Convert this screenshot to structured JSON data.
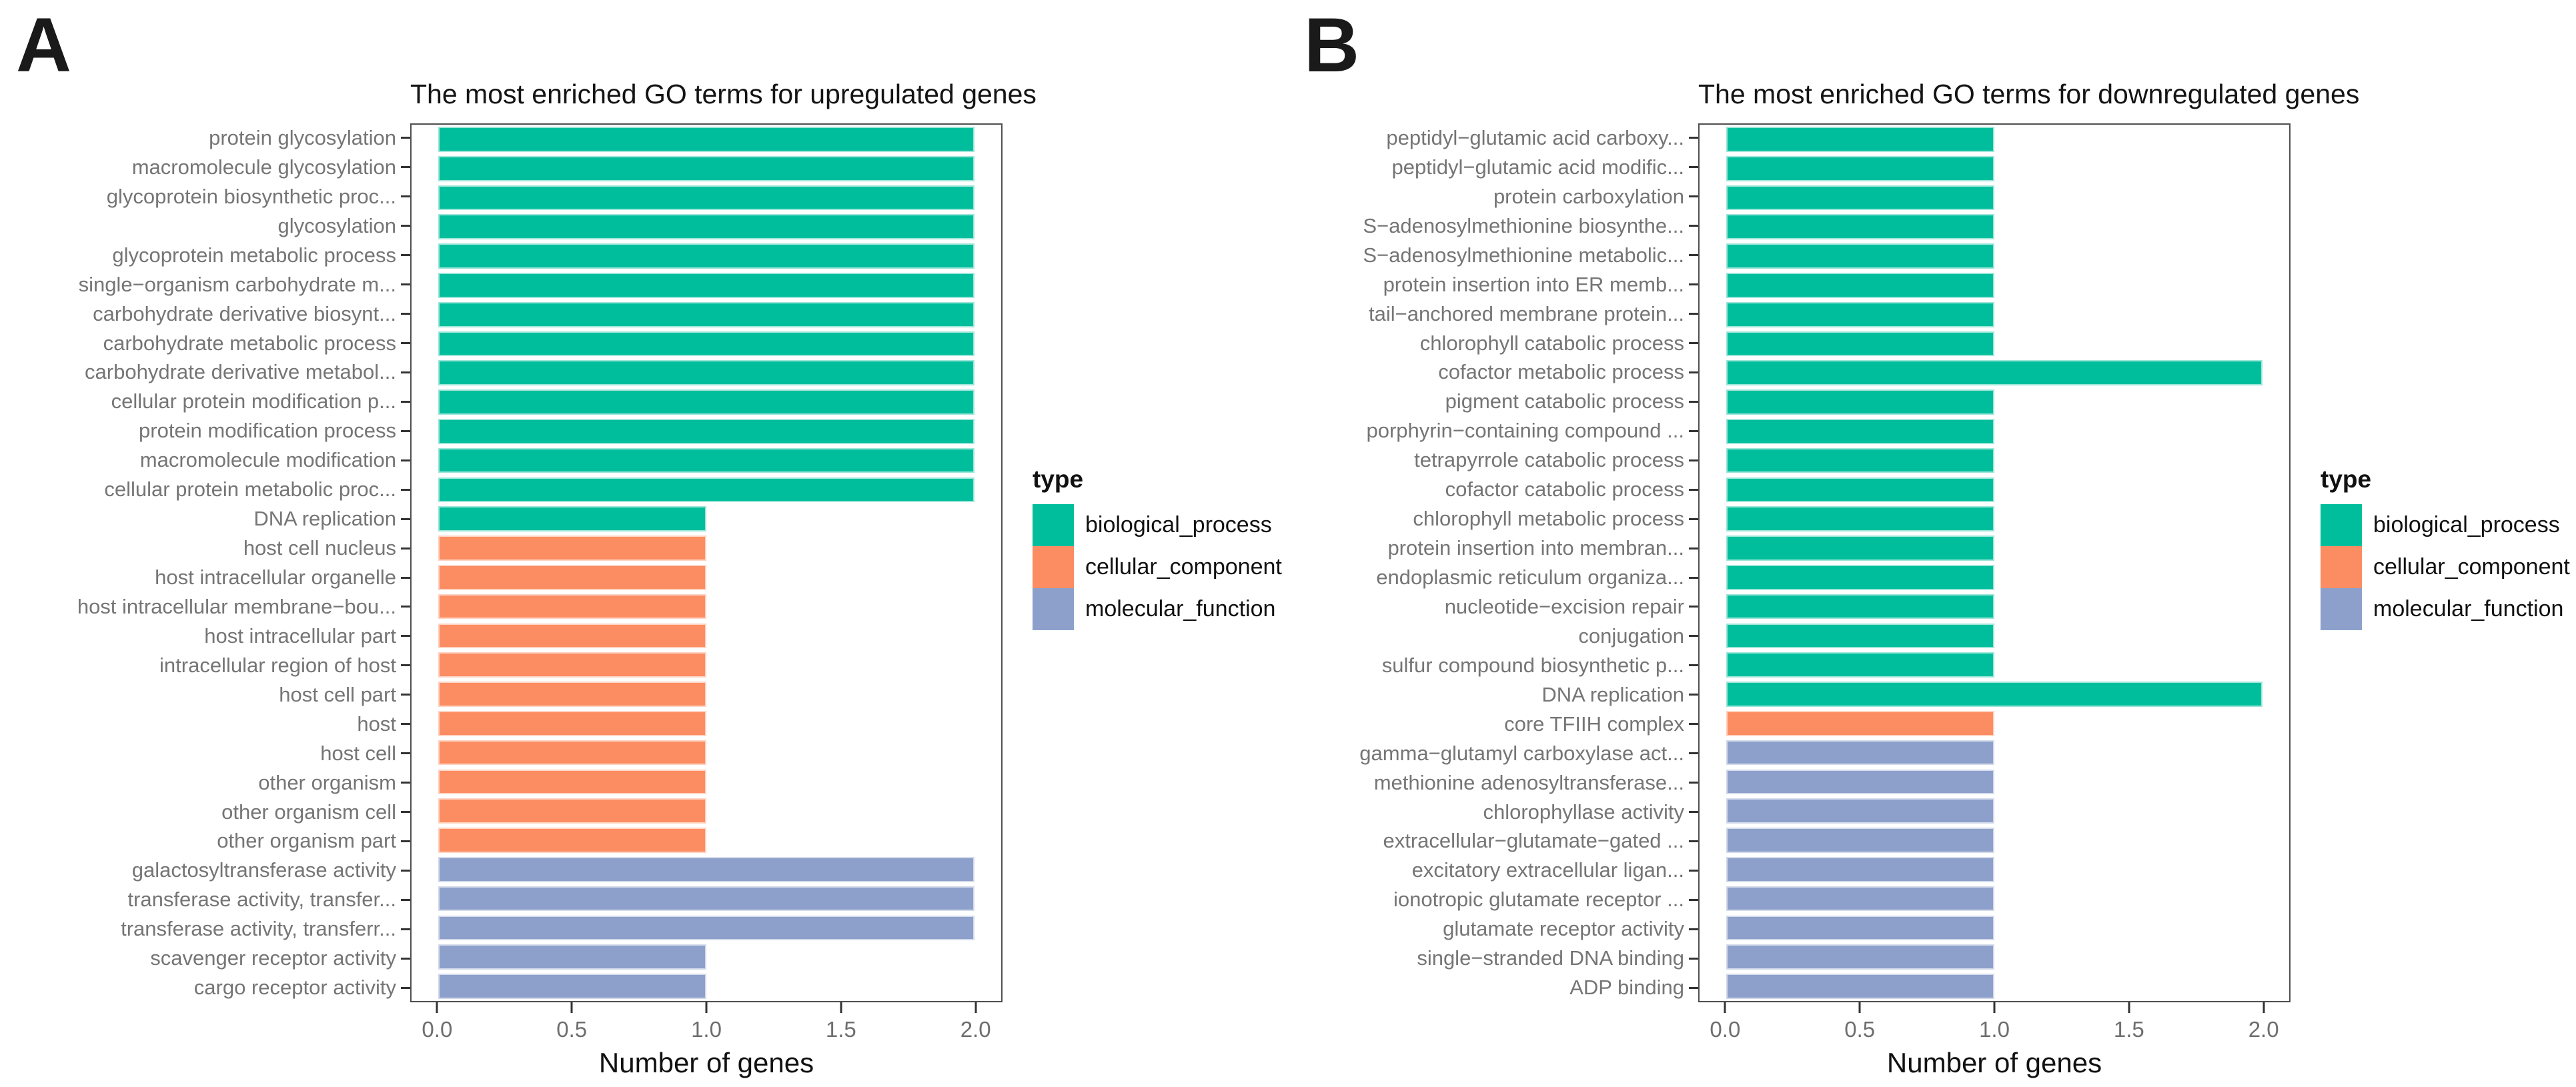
{
  "x_axis": {
    "label": "Number of genes",
    "ticks": [
      "0.0",
      "0.5",
      "1.0",
      "1.5",
      "2.0"
    ],
    "min": 0,
    "max": 2
  },
  "legend": {
    "title": "type",
    "entries": [
      {
        "label": "biological_process",
        "color": "#00be9c"
      },
      {
        "label": "cellular_component",
        "color": "#fc8d62"
      },
      {
        "label": "molecular_function",
        "color": "#8da0cb"
      }
    ]
  },
  "chart_data": [
    {
      "type": "bar",
      "orientation": "horizontal",
      "panel_letter": "A",
      "title": "The most enriched GO terms for upregulated genes",
      "xlabel": "Number of genes",
      "xlim": [
        0,
        2
      ],
      "x_ticks": [
        0,
        0.5,
        1,
        1.5,
        2
      ],
      "grid": false,
      "legend_position": "right",
      "legend_title": "type",
      "bars": [
        {
          "label": "protein glycosylation",
          "type": "biological_process",
          "value": 2
        },
        {
          "label": "macromolecule glycosylation",
          "type": "biological_process",
          "value": 2
        },
        {
          "label": "glycoprotein biosynthetic proc...",
          "type": "biological_process",
          "value": 2
        },
        {
          "label": "glycosylation",
          "type": "biological_process",
          "value": 2
        },
        {
          "label": "glycoprotein metabolic process",
          "type": "biological_process",
          "value": 2
        },
        {
          "label": "single−organism carbohydrate m...",
          "type": "biological_process",
          "value": 2
        },
        {
          "label": "carbohydrate derivative biosynt...",
          "type": "biological_process",
          "value": 2
        },
        {
          "label": "carbohydrate metabolic process",
          "type": "biological_process",
          "value": 2
        },
        {
          "label": "carbohydrate derivative metabol...",
          "type": "biological_process",
          "value": 2
        },
        {
          "label": "cellular protein modification p...",
          "type": "biological_process",
          "value": 2
        },
        {
          "label": "protein modification process",
          "type": "biological_process",
          "value": 2
        },
        {
          "label": "macromolecule modification",
          "type": "biological_process",
          "value": 2
        },
        {
          "label": "cellular protein metabolic proc...",
          "type": "biological_process",
          "value": 2
        },
        {
          "label": "DNA replication",
          "type": "biological_process",
          "value": 1
        },
        {
          "label": "host cell nucleus",
          "type": "cellular_component",
          "value": 1
        },
        {
          "label": "host intracellular organelle",
          "type": "cellular_component",
          "value": 1
        },
        {
          "label": "host intracellular membrane−bou...",
          "type": "cellular_component",
          "value": 1
        },
        {
          "label": "host intracellular part",
          "type": "cellular_component",
          "value": 1
        },
        {
          "label": "intracellular region of host",
          "type": "cellular_component",
          "value": 1
        },
        {
          "label": "host cell part",
          "type": "cellular_component",
          "value": 1
        },
        {
          "label": "host",
          "type": "cellular_component",
          "value": 1
        },
        {
          "label": "host cell",
          "type": "cellular_component",
          "value": 1
        },
        {
          "label": "other organism",
          "type": "cellular_component",
          "value": 1
        },
        {
          "label": "other organism cell",
          "type": "cellular_component",
          "value": 1
        },
        {
          "label": "other organism part",
          "type": "cellular_component",
          "value": 1
        },
        {
          "label": "galactosyltransferase activity",
          "type": "molecular_function",
          "value": 2
        },
        {
          "label": "transferase activity, transfer...",
          "type": "molecular_function",
          "value": 2
        },
        {
          "label": "transferase activity, transferr...",
          "type": "molecular_function",
          "value": 2
        },
        {
          "label": "scavenger receptor activity",
          "type": "molecular_function",
          "value": 1
        },
        {
          "label": "cargo receptor activity",
          "type": "molecular_function",
          "value": 1
        }
      ]
    },
    {
      "type": "bar",
      "orientation": "horizontal",
      "panel_letter": "B",
      "title": "The most enriched GO terms for downregulated genes",
      "xlabel": "Number of genes",
      "xlim": [
        0,
        2
      ],
      "x_ticks": [
        0,
        0.5,
        1,
        1.5,
        2
      ],
      "grid": false,
      "legend_position": "right",
      "legend_title": "type",
      "bars": [
        {
          "label": "peptidyl−glutamic acid carboxy...",
          "type": "biological_process",
          "value": 1
        },
        {
          "label": "peptidyl−glutamic acid modific...",
          "type": "biological_process",
          "value": 1
        },
        {
          "label": "protein carboxylation",
          "type": "biological_process",
          "value": 1
        },
        {
          "label": "S−adenosylmethionine biosynthe...",
          "type": "biological_process",
          "value": 1
        },
        {
          "label": "S−adenosylmethionine metabolic...",
          "type": "biological_process",
          "value": 1
        },
        {
          "label": "protein insertion into ER memb...",
          "type": "biological_process",
          "value": 1
        },
        {
          "label": "tail−anchored membrane protein...",
          "type": "biological_process",
          "value": 1
        },
        {
          "label": "chlorophyll catabolic process",
          "type": "biological_process",
          "value": 1
        },
        {
          "label": "cofactor metabolic process",
          "type": "biological_process",
          "value": 2
        },
        {
          "label": "pigment catabolic process",
          "type": "biological_process",
          "value": 1
        },
        {
          "label": "porphyrin−containing compound ...",
          "type": "biological_process",
          "value": 1
        },
        {
          "label": "tetrapyrrole catabolic process",
          "type": "biological_process",
          "value": 1
        },
        {
          "label": "cofactor catabolic process",
          "type": "biological_process",
          "value": 1
        },
        {
          "label": "chlorophyll metabolic process",
          "type": "biological_process",
          "value": 1
        },
        {
          "label": "protein insertion into membran...",
          "type": "biological_process",
          "value": 1
        },
        {
          "label": "endoplasmic reticulum organiza...",
          "type": "biological_process",
          "value": 1
        },
        {
          "label": "nucleotide−excision repair",
          "type": "biological_process",
          "value": 1
        },
        {
          "label": "conjugation",
          "type": "biological_process",
          "value": 1
        },
        {
          "label": "sulfur compound biosynthetic p...",
          "type": "biological_process",
          "value": 1
        },
        {
          "label": "DNA replication",
          "type": "biological_process",
          "value": 2
        },
        {
          "label": "core TFIIH complex",
          "type": "cellular_component",
          "value": 1
        },
        {
          "label": "gamma−glutamyl carboxylase act...",
          "type": "molecular_function",
          "value": 1
        },
        {
          "label": "methionine adenosyltransferase...",
          "type": "molecular_function",
          "value": 1
        },
        {
          "label": "chlorophyllase activity",
          "type": "molecular_function",
          "value": 1
        },
        {
          "label": "extracellular−glutamate−gated ...",
          "type": "molecular_function",
          "value": 1
        },
        {
          "label": "excitatory extracellular ligan...",
          "type": "molecular_function",
          "value": 1
        },
        {
          "label": "ionotropic glutamate receptor ...",
          "type": "molecular_function",
          "value": 1
        },
        {
          "label": "glutamate receptor activity",
          "type": "molecular_function",
          "value": 1
        },
        {
          "label": "single−stranded DNA binding",
          "type": "molecular_function",
          "value": 1
        },
        {
          "label": "ADP binding",
          "type": "molecular_function",
          "value": 1
        }
      ]
    }
  ]
}
